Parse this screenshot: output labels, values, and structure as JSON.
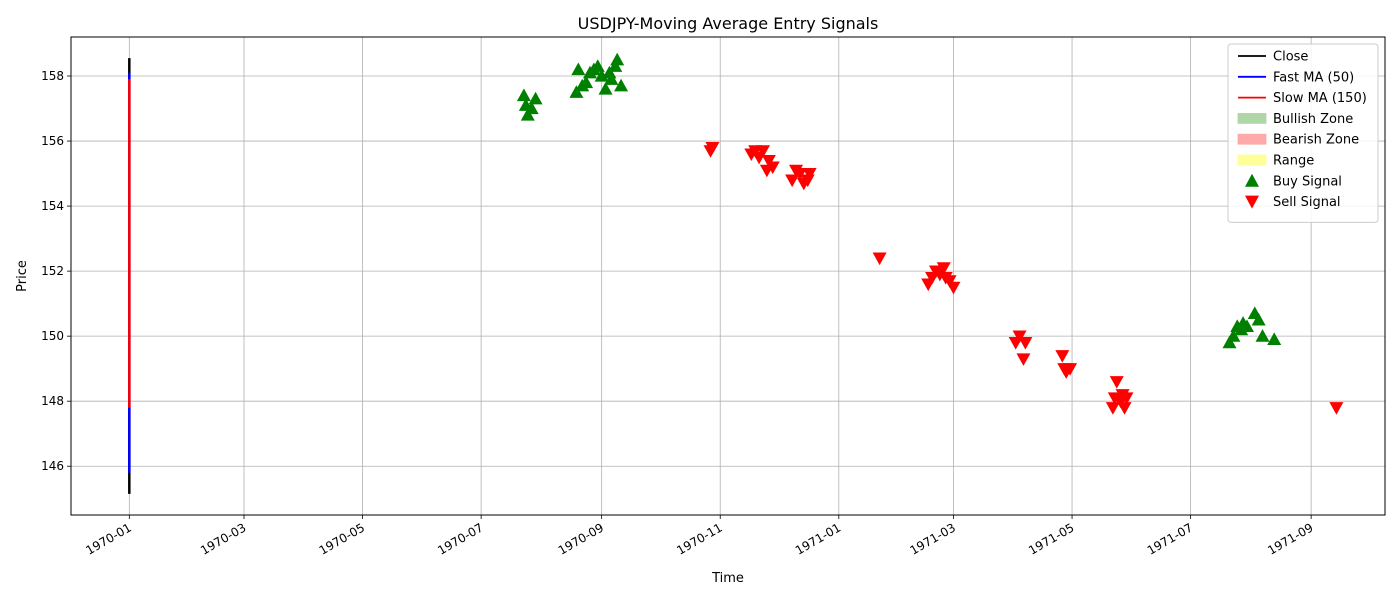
{
  "chart_data": {
    "type": "line",
    "title": "USDJPY-Moving Average Entry Signals",
    "xlabel": "Time",
    "ylabel": "Price",
    "xlim": [
      "1969-12-02",
      "1971-10-09"
    ],
    "ylim": [
      144.5,
      159.2
    ],
    "grid": true,
    "legend_placement": "top-right",
    "x_ticks": [
      "1970-01",
      "1970-03",
      "1970-05",
      "1970-07",
      "1970-09",
      "1970-11",
      "1971-01",
      "1971-03",
      "1971-05",
      "1971-07",
      "1971-09"
    ],
    "y_ticks": [
      146,
      148,
      150,
      152,
      154,
      156,
      158
    ],
    "colors": {
      "close": "#000000",
      "fast_ma": "#0000ff",
      "slow_ma": "#ff0000",
      "bullish_zone": "#aed6a6",
      "bearish_zone": "#ffaaaa",
      "range": "#ffff99",
      "buy": "#008000",
      "sell": "#ff0000"
    },
    "lines": [
      {
        "key": "close",
        "x": "1970-01-01",
        "y": [
          145.15,
          158.55
        ]
      },
      {
        "key": "fast_ma",
        "x": "1970-01-01",
        "y": [
          145.8,
          158.1
        ]
      },
      {
        "key": "slow_ma",
        "x": "1970-01-01",
        "y": [
          147.8,
          157.9
        ]
      }
    ],
    "buy_signals": [
      {
        "x": "1970-07-23",
        "y": 157.4
      },
      {
        "x": "1970-07-24",
        "y": 157.1
      },
      {
        "x": "1970-07-25",
        "y": 156.8
      },
      {
        "x": "1970-07-27",
        "y": 157.0
      },
      {
        "x": "1970-07-29",
        "y": 157.3
      },
      {
        "x": "1970-08-19",
        "y": 157.5
      },
      {
        "x": "1970-08-20",
        "y": 158.2
      },
      {
        "x": "1970-08-22",
        "y": 157.7
      },
      {
        "x": "1970-08-24",
        "y": 157.8
      },
      {
        "x": "1970-08-26",
        "y": 158.1
      },
      {
        "x": "1970-08-28",
        "y": 158.2
      },
      {
        "x": "1970-08-30",
        "y": 158.3
      },
      {
        "x": "1970-09-01",
        "y": 158.0
      },
      {
        "x": "1970-09-03",
        "y": 157.6
      },
      {
        "x": "1970-09-05",
        "y": 158.1
      },
      {
        "x": "1970-09-06",
        "y": 157.9
      },
      {
        "x": "1970-09-08",
        "y": 158.3
      },
      {
        "x": "1970-09-09",
        "y": 158.5
      },
      {
        "x": "1970-09-11",
        "y": 157.7
      },
      {
        "x": "1971-07-21",
        "y": 149.8
      },
      {
        "x": "1971-07-23",
        "y": 150.0
      },
      {
        "x": "1971-07-25",
        "y": 150.3
      },
      {
        "x": "1971-07-27",
        "y": 150.2
      },
      {
        "x": "1971-07-28",
        "y": 150.4
      },
      {
        "x": "1971-07-30",
        "y": 150.3
      },
      {
        "x": "1971-08-03",
        "y": 150.7
      },
      {
        "x": "1971-08-05",
        "y": 150.5
      },
      {
        "x": "1971-08-07",
        "y": 150.0
      },
      {
        "x": "1971-08-13",
        "y": 149.9
      }
    ],
    "sell_signals": [
      {
        "x": "1970-10-27",
        "y": 155.7
      },
      {
        "x": "1970-10-28",
        "y": 155.8
      },
      {
        "x": "1970-11-17",
        "y": 155.6
      },
      {
        "x": "1970-11-19",
        "y": 155.7
      },
      {
        "x": "1970-11-21",
        "y": 155.5
      },
      {
        "x": "1970-11-23",
        "y": 155.7
      },
      {
        "x": "1970-11-25",
        "y": 155.1
      },
      {
        "x": "1970-11-26",
        "y": 155.4
      },
      {
        "x": "1970-11-28",
        "y": 155.2
      },
      {
        "x": "1970-12-08",
        "y": 154.8
      },
      {
        "x": "1970-12-10",
        "y": 155.1
      },
      {
        "x": "1970-12-12",
        "y": 155.0
      },
      {
        "x": "1970-12-14",
        "y": 154.7
      },
      {
        "x": "1970-12-16",
        "y": 154.8
      },
      {
        "x": "1970-12-17",
        "y": 155.0
      },
      {
        "x": "1971-01-22",
        "y": 152.4
      },
      {
        "x": "1971-02-16",
        "y": 151.6
      },
      {
        "x": "1971-02-18",
        "y": 151.8
      },
      {
        "x": "1971-02-20",
        "y": 152.0
      },
      {
        "x": "1971-02-22",
        "y": 151.9
      },
      {
        "x": "1971-02-24",
        "y": 152.1
      },
      {
        "x": "1971-02-25",
        "y": 151.8
      },
      {
        "x": "1971-02-27",
        "y": 151.7
      },
      {
        "x": "1971-03-01",
        "y": 151.5
      },
      {
        "x": "1971-04-02",
        "y": 149.8
      },
      {
        "x": "1971-04-04",
        "y": 150.0
      },
      {
        "x": "1971-04-06",
        "y": 149.3
      },
      {
        "x": "1971-04-07",
        "y": 149.8
      },
      {
        "x": "1971-04-26",
        "y": 149.4
      },
      {
        "x": "1971-04-27",
        "y": 149.0
      },
      {
        "x": "1971-04-28",
        "y": 148.9
      },
      {
        "x": "1971-04-30",
        "y": 149.0
      },
      {
        "x": "1971-05-22",
        "y": 147.8
      },
      {
        "x": "1971-05-23",
        "y": 148.1
      },
      {
        "x": "1971-05-24",
        "y": 148.6
      },
      {
        "x": "1971-05-26",
        "y": 148.0
      },
      {
        "x": "1971-05-27",
        "y": 148.2
      },
      {
        "x": "1971-05-28",
        "y": 147.8
      },
      {
        "x": "1971-05-29",
        "y": 148.1
      },
      {
        "x": "1971-09-14",
        "y": 147.8
      }
    ],
    "legend": [
      {
        "kind": "line",
        "color_key": "close",
        "label": "Close"
      },
      {
        "kind": "line",
        "color_key": "fast_ma",
        "label": "Fast MA (50)"
      },
      {
        "kind": "line",
        "color_key": "slow_ma",
        "label": "Slow MA (150)"
      },
      {
        "kind": "patch",
        "color_key": "bullish_zone",
        "label": "Bullish Zone"
      },
      {
        "kind": "patch",
        "color_key": "bearish_zone",
        "label": "Bearish Zone"
      },
      {
        "kind": "patch",
        "color_key": "range",
        "label": "Range"
      },
      {
        "kind": "marker-up",
        "color_key": "buy",
        "label": "Buy Signal"
      },
      {
        "kind": "marker-down",
        "color_key": "sell",
        "label": "Sell Signal"
      }
    ]
  }
}
